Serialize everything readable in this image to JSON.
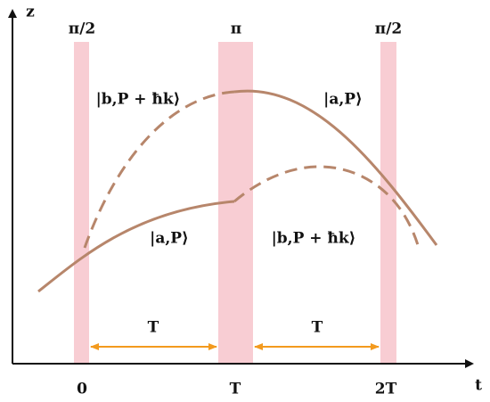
{
  "axes": {
    "y_label": "z",
    "x_label": "t"
  },
  "pulses": [
    "π/2",
    "π",
    "π/2"
  ],
  "states": [
    "|b,P + ħk⟩",
    "|a,P⟩",
    "|a,P⟩",
    "|b,P + ħk⟩"
  ],
  "intervals": [
    "T",
    "T"
  ],
  "time_ticks": [
    "0",
    "T",
    "2T"
  ]
}
